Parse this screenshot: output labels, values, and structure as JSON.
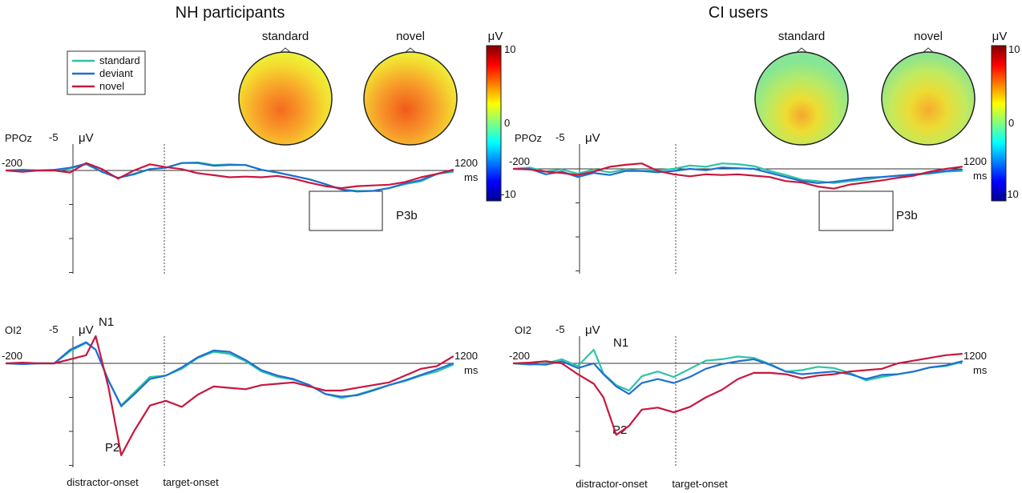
{
  "colors": {
    "standard": "#2ec4a6",
    "deviant": "#1f6fd1",
    "novel": "#c8173f"
  },
  "legend": [
    {
      "key": "standard",
      "label": "standard"
    },
    {
      "key": "deviant",
      "label": "deviant"
    },
    {
      "key": "novel",
      "label": "novel"
    }
  ],
  "groups": {
    "nh": {
      "title": "NH participants",
      "topo": {
        "standard_label": "standard",
        "novel_label": "novel"
      }
    },
    "ci": {
      "title": "CI users",
      "topo": {
        "standard_label": "standard",
        "novel_label": "novel"
      }
    }
  },
  "colorbar": {
    "unit": "μV",
    "max": "10",
    "mid": "0",
    "min": "-10"
  },
  "axis_labels": {
    "neg5": "-5",
    "uv": "μV",
    "start": "-200",
    "end": "1200",
    "ms": "ms",
    "distractor": "distractor-onset",
    "target": "target-onset"
  },
  "chart_data": [
    {
      "type": "line",
      "title": "NH participants — PPOz",
      "channel": "PPOz",
      "xlabel": "ms",
      "ylabel": "μV",
      "xlim": [
        -200,
        1200
      ],
      "ylim": [
        7.5,
        -5
      ],
      "annotations": [
        {
          "text": "P3b",
          "x_range": [
            800,
            1050
          ],
          "y_range": [
            1,
            3
          ]
        }
      ],
      "series": [
        {
          "name": "standard",
          "x": [
            -200,
            -150,
            -100,
            -50,
            0,
            50,
            100,
            150,
            200,
            250,
            300,
            350,
            400,
            450,
            500,
            550,
            600,
            650,
            700,
            750,
            800,
            850,
            900,
            950,
            1000,
            1050,
            1100,
            1150,
            1200
          ],
          "y": [
            0,
            -0.1,
            0,
            0,
            -0.3,
            -0.9,
            0.2,
            1.1,
            0.6,
            -0.2,
            -0.4,
            -1.1,
            -1.2,
            -0.8,
            -0.9,
            -0.8,
            -0.1,
            0.3,
            0.8,
            1.3,
            2.0,
            2.8,
            3.0,
            3.0,
            2.6,
            2.0,
            1.6,
            0.5,
            0.2
          ]
        },
        {
          "name": "deviant",
          "x": [
            -200,
            -150,
            -100,
            -50,
            0,
            50,
            100,
            150,
            200,
            250,
            300,
            350,
            400,
            450,
            500,
            550,
            600,
            650,
            700,
            750,
            800,
            850,
            900,
            950,
            1000,
            1050,
            1100,
            1150,
            1200
          ],
          "y": [
            0,
            -0.1,
            0,
            -0.1,
            -0.4,
            -1.0,
            0.2,
            1.1,
            0.5,
            -0.2,
            -0.4,
            -1.1,
            -1.1,
            -0.7,
            -0.8,
            -0.8,
            -0.1,
            0.3,
            0.8,
            1.3,
            2.0,
            2.8,
            3.1,
            3.0,
            2.6,
            1.9,
            1.4,
            0.5,
            0.0
          ]
        },
        {
          "name": "novel",
          "x": [
            -200,
            -150,
            -100,
            -50,
            0,
            50,
            100,
            150,
            200,
            250,
            300,
            350,
            400,
            450,
            500,
            550,
            600,
            650,
            700,
            750,
            800,
            850,
            900,
            950,
            1000,
            1050,
            1100,
            1150,
            1200
          ],
          "y": [
            0,
            0.2,
            0,
            0,
            0.3,
            -1.1,
            -0.2,
            1.2,
            0,
            -0.9,
            -0.5,
            -0.2,
            0.4,
            0.7,
            1.0,
            0.9,
            1.0,
            0.8,
            1.2,
            1.8,
            2.3,
            2.6,
            2.3,
            2.2,
            2.1,
            1.7,
            1.0,
            0.5,
            -0.1
          ]
        }
      ]
    },
    {
      "type": "line",
      "title": "NH participants — OI2",
      "channel": "OI2",
      "xlabel": "ms",
      "ylabel": "μV",
      "xlim": [
        -200,
        1200
      ],
      "ylim": [
        15,
        -5
      ],
      "annotations": [
        {
          "text": "N1",
          "x": 70,
          "y": -5
        },
        {
          "text": "P2",
          "x": 160,
          "y": 13
        }
      ],
      "series": [
        {
          "name": "standard",
          "x": [
            -200,
            -150,
            -100,
            -50,
            0,
            50,
            80,
            120,
            160,
            200,
            250,
            300,
            350,
            400,
            450,
            500,
            550,
            600,
            650,
            700,
            750,
            800,
            850,
            900,
            950,
            1000,
            1050,
            1100,
            1150,
            1200
          ],
          "y": [
            0,
            0.1,
            0,
            0,
            -1.8,
            -3,
            -2,
            2.5,
            6.2,
            4.3,
            2,
            1.8,
            0.8,
            -0.8,
            -1.7,
            -1.4,
            -0.3,
            1.2,
            2.0,
            2.4,
            3.2,
            4.5,
            5.1,
            4.6,
            3.9,
            3.2,
            2.6,
            1.8,
            1.2,
            0.2
          ]
        },
        {
          "name": "deviant",
          "x": [
            -200,
            -150,
            -100,
            -50,
            0,
            50,
            80,
            120,
            160,
            200,
            250,
            300,
            350,
            400,
            450,
            500,
            550,
            600,
            650,
            700,
            750,
            800,
            850,
            900,
            950,
            1000,
            1050,
            1100,
            1150,
            1200
          ],
          "y": [
            0,
            0.1,
            0,
            0,
            -2,
            -3.1,
            -2,
            2.5,
            6.3,
            4.6,
            2.3,
            1.8,
            0.6,
            -0.9,
            -1.9,
            -1.7,
            -0.5,
            1.0,
            1.8,
            2.3,
            3.2,
            4.5,
            4.9,
            4.7,
            4.0,
            3.2,
            2.5,
            1.7,
            0.9,
            0
          ]
        },
        {
          "name": "novel",
          "x": [
            -200,
            -150,
            -100,
            -50,
            0,
            50,
            80,
            120,
            160,
            200,
            250,
            300,
            350,
            400,
            450,
            500,
            550,
            600,
            650,
            700,
            750,
            800,
            850,
            900,
            950,
            1000,
            1050,
            1100,
            1150,
            1200
          ],
          "y": [
            0,
            -0.1,
            0,
            0,
            -0.6,
            -1.2,
            -4,
            3.5,
            13.5,
            10,
            6.2,
            5.5,
            6.4,
            4.6,
            3.4,
            3.6,
            3.8,
            3.2,
            3.0,
            2.8,
            3.4,
            4.0,
            4.0,
            3.6,
            3.2,
            2.8,
            1.8,
            0.8,
            0.4,
            -1
          ]
        }
      ]
    },
    {
      "type": "line",
      "title": "CI users — PPOz",
      "channel": "PPOz",
      "xlabel": "ms",
      "ylabel": "μV",
      "xlim": [
        -200,
        1200
      ],
      "ylim": [
        7.5,
        -5
      ],
      "annotations": [
        {
          "text": "P3b",
          "x_range": [
            800,
            1050
          ],
          "y_range": [
            1,
            3
          ]
        }
      ],
      "series": [
        {
          "name": "standard",
          "x": [
            -200,
            -150,
            -100,
            -50,
            0,
            50,
            100,
            150,
            200,
            250,
            300,
            350,
            400,
            450,
            500,
            550,
            600,
            650,
            700,
            750,
            800,
            850,
            900,
            950,
            1000,
            1050,
            1100,
            1150,
            1200
          ],
          "y": [
            0,
            -0.2,
            0.4,
            0.1,
            0.7,
            0.1,
            0.5,
            0.1,
            0.3,
            0.2,
            0,
            -0.5,
            -0.3,
            -0.8,
            -0.7,
            -0.4,
            0.3,
            0.9,
            1.6,
            1.8,
            2.1,
            1.8,
            1.6,
            1.2,
            1.0,
            0.9,
            0.7,
            0.4,
            0.3
          ]
        },
        {
          "name": "deviant",
          "x": [
            -200,
            -150,
            -100,
            -50,
            0,
            50,
            100,
            150,
            200,
            250,
            300,
            350,
            400,
            450,
            500,
            550,
            600,
            650,
            700,
            750,
            800,
            850,
            900,
            950,
            1000,
            1050,
            1100,
            1150,
            1200
          ],
          "y": [
            0,
            0,
            0.8,
            0.4,
            1.2,
            0.6,
            0.9,
            0.3,
            0.3,
            0.5,
            0.3,
            0,
            0.2,
            -0.2,
            -0.1,
            0,
            0.6,
            1.2,
            1.8,
            2.1,
            1.9,
            1.6,
            1.3,
            1.2,
            1.0,
            0.8,
            0.6,
            0.3,
            0.1
          ]
        },
        {
          "name": "novel",
          "x": [
            -200,
            -150,
            -100,
            -50,
            0,
            50,
            100,
            150,
            200,
            250,
            300,
            350,
            400,
            450,
            500,
            550,
            600,
            650,
            700,
            750,
            800,
            850,
            900,
            950,
            1000,
            1050,
            1100,
            1150,
            1200
          ],
          "y": [
            0,
            0.1,
            0.4,
            0.6,
            0.9,
            0.4,
            -0.3,
            -0.6,
            -0.8,
            0.3,
            0.8,
            1.1,
            0.8,
            0.9,
            0.8,
            1.0,
            1.2,
            1.8,
            2.0,
            2.6,
            2.9,
            2.3,
            2.0,
            1.7,
            1.3,
            1.0,
            0.4,
            0.0,
            -0.3
          ]
        }
      ]
    },
    {
      "type": "line",
      "title": "CI users — OI2",
      "channel": "OI2",
      "xlabel": "ms",
      "ylabel": "μV",
      "xlim": [
        -200,
        1200
      ],
      "ylim": [
        15,
        -5
      ],
      "annotations": [
        {
          "text": "N1",
          "x": 70,
          "y": -4
        },
        {
          "text": "P2",
          "x": 160,
          "y": 11
        }
      ],
      "series": [
        {
          "name": "standard",
          "x": [
            -200,
            -150,
            -100,
            -50,
            0,
            50,
            80,
            120,
            160,
            200,
            250,
            300,
            350,
            400,
            450,
            500,
            550,
            600,
            650,
            700,
            750,
            800,
            850,
            900,
            950,
            1000,
            1050,
            1100,
            1150,
            1200
          ],
          "y": [
            0,
            0.2,
            0,
            -0.6,
            0.4,
            -2,
            1.5,
            3.2,
            4.0,
            1.9,
            1.2,
            2.0,
            0.8,
            -0.4,
            -0.6,
            -1.0,
            -0.8,
            0.1,
            1.2,
            1.0,
            0.5,
            0.7,
            1.4,
            2.5,
            2.0,
            1.6,
            1.2,
            0.6,
            0.4,
            -0.2
          ]
        },
        {
          "name": "deviant",
          "x": [
            -200,
            -150,
            -100,
            -50,
            0,
            50,
            80,
            120,
            160,
            200,
            250,
            300,
            350,
            400,
            450,
            500,
            550,
            600,
            650,
            700,
            750,
            800,
            850,
            900,
            950,
            1000,
            1050,
            1100,
            1150,
            1200
          ],
          "y": [
            0,
            0.1,
            0.2,
            -0.3,
            0.7,
            0,
            1.6,
            3.4,
            4.5,
            2.9,
            2.3,
            2.9,
            2.0,
            0.8,
            0.1,
            -0.3,
            -0.6,
            0.2,
            1.2,
            1.6,
            1.4,
            1.2,
            1.6,
            2.3,
            1.7,
            1.6,
            1.2,
            0.6,
            0.3,
            -0.3
          ]
        },
        {
          "name": "novel",
          "x": [
            -200,
            -150,
            -100,
            -50,
            0,
            50,
            80,
            120,
            160,
            200,
            250,
            300,
            350,
            400,
            450,
            500,
            550,
            600,
            650,
            700,
            750,
            800,
            850,
            900,
            950,
            1000,
            1050,
            1100,
            1150,
            1200
          ],
          "y": [
            0,
            -0.1,
            -0.3,
            0,
            1.6,
            3,
            5,
            10.5,
            9.2,
            6.8,
            6.5,
            7.2,
            6.4,
            5.0,
            3.9,
            2.3,
            1.4,
            1.4,
            1.6,
            2.2,
            1.8,
            1.6,
            1.2,
            1.0,
            0.8,
            0.0,
            -0.4,
            -0.8,
            -1.2,
            -1.4
          ]
        }
      ]
    }
  ]
}
